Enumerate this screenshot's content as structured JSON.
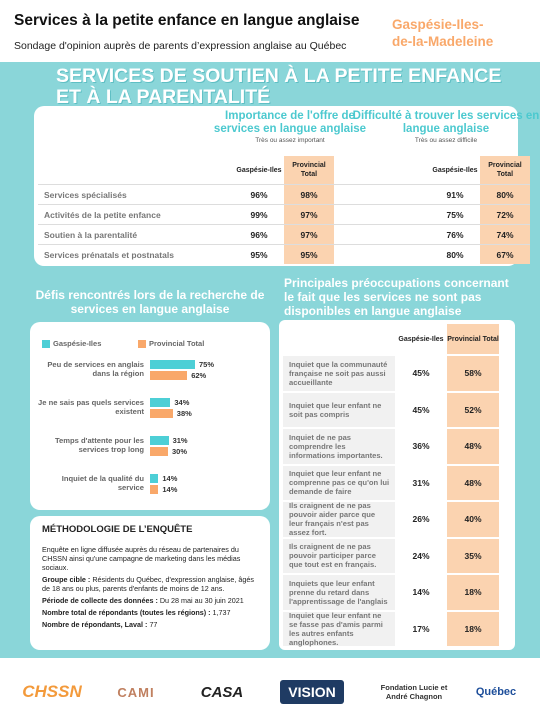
{
  "header": {
    "title": "Services à la petite enfance en langue anglaise",
    "subtitle": "Sondage d'opinion auprès de parents d’expression anglaise au Québec",
    "region": "Gaspésie-Iles-de-la-Madeleine"
  },
  "section_title": "SERVICES DE SOUTIEN À LA PETITE ENFANCE ET À LA PARENTALITÉ",
  "services_table": {
    "groups": [
      {
        "title": "Importance de l'offre de services en langue anglaise",
        "subtitle": "Très ou assez important",
        "columns": [
          "Gaspésie-Iles",
          "Provincial Total"
        ]
      },
      {
        "title": "Difficulté à trouver les services en langue anglaise",
        "subtitle": "Très ou assez difficile",
        "columns": [
          "Gaspésie-Iles",
          "Provincial Total"
        ]
      }
    ],
    "rows": [
      {
        "label": "Services spécialisés",
        "cells": [
          "96%",
          "98%",
          "91%",
          "80%"
        ]
      },
      {
        "label": "Activités de la petite enfance",
        "cells": [
          "99%",
          "97%",
          "75%",
          "72%"
        ]
      },
      {
        "label": "Soutien à la parentalité",
        "cells": [
          "96%",
          "97%",
          "76%",
          "74%"
        ]
      },
      {
        "label": "Services prénatals et postnatals",
        "cells": [
          "95%",
          "95%",
          "80%",
          "67%"
        ]
      }
    ]
  },
  "chart_data": {
    "type": "bar",
    "orientation": "horizontal",
    "title": "Défis rencontrés lors de la recherche de services en langue anglaise",
    "categories": [
      "Peu de services en anglais dans la région",
      "Je ne sais pas quels services existent",
      "Temps d'attente pour les services trop long",
      "Inquiet de la qualité du service"
    ],
    "series": [
      {
        "name": "Gaspésie-Iles",
        "color": "#4dcfd6",
        "values": [
          75,
          34,
          31,
          14
        ],
        "value_labels": [
          "75%",
          "34%",
          "31%",
          "14%"
        ]
      },
      {
        "name": "Provincial Total",
        "color": "#f9a86a",
        "values": [
          62,
          38,
          30,
          14
        ],
        "value_labels": [
          "62%",
          "38%",
          "30%",
          "14%"
        ]
      }
    ],
    "legend": "top"
  },
  "methodology": {
    "title": "MÉTHODOLOGIE DE L’ENQUÊTE",
    "intro": "Enquête en ligne diffusée auprès du réseau de partenaires du CHSSN ainsi qu'une campagne de marketing dans les médias sociaux.",
    "items": [
      {
        "label": "Groupe cible :",
        "text": "Résidents du Québec, d'expression anglaise, âgés de 18 ans ou plus, parents d'enfants de moins de 12 ans."
      },
      {
        "label": "Période de collecte des données :",
        "text": "Du 28 mai au 30 juin 2021"
      },
      {
        "label": "Nombre total de répondants (toutes les régions) :",
        "text": "1,737"
      },
      {
        "label": "Nombre de répondants, Laval :",
        "text": "77"
      }
    ]
  },
  "concerns": {
    "title": "Principales préoccupations concernant le fait que les services ne sont pas disponibles en langue anglaise",
    "columns": [
      "Gaspésie-Iles",
      "Provincial Total"
    ],
    "rows": [
      {
        "label": "Inquiet que la communauté française ne soit pas aussi accueillante",
        "cells": [
          "45%",
          "58%"
        ]
      },
      {
        "label": "Inquiet que leur enfant ne soit pas compris",
        "cells": [
          "45%",
          "52%"
        ]
      },
      {
        "label": "Inquiet de ne pas comprendre les informations importantes.",
        "cells": [
          "36%",
          "48%"
        ]
      },
      {
        "label": "Inquiet que leur enfant ne comprenne pas ce qu'on lui demande de faire",
        "cells": [
          "31%",
          "48%"
        ]
      },
      {
        "label": "Ils craignent de ne pas pouvoir aider parce que leur français n'est pas assez fort.",
        "cells": [
          "26%",
          "40%"
        ]
      },
      {
        "label": "Ils craignent de ne pas pouvoir participer parce que tout est en français.",
        "cells": [
          "24%",
          "35%"
        ]
      },
      {
        "label": "Inquiets que leur enfant prenne du retard dans l'apprentissage de l'anglais",
        "cells": [
          "14%",
          "18%"
        ]
      },
      {
        "label": "Inquiet que leur enfant ne se fasse pas d'amis parmi les autres enfants anglophones.",
        "cells": [
          "17%",
          "18%"
        ]
      }
    ]
  },
  "logos": [
    "CHSSN",
    "CAMI",
    "CASA",
    "VISION",
    "Fondation Lucie et André Chagnon",
    "Québec"
  ]
}
